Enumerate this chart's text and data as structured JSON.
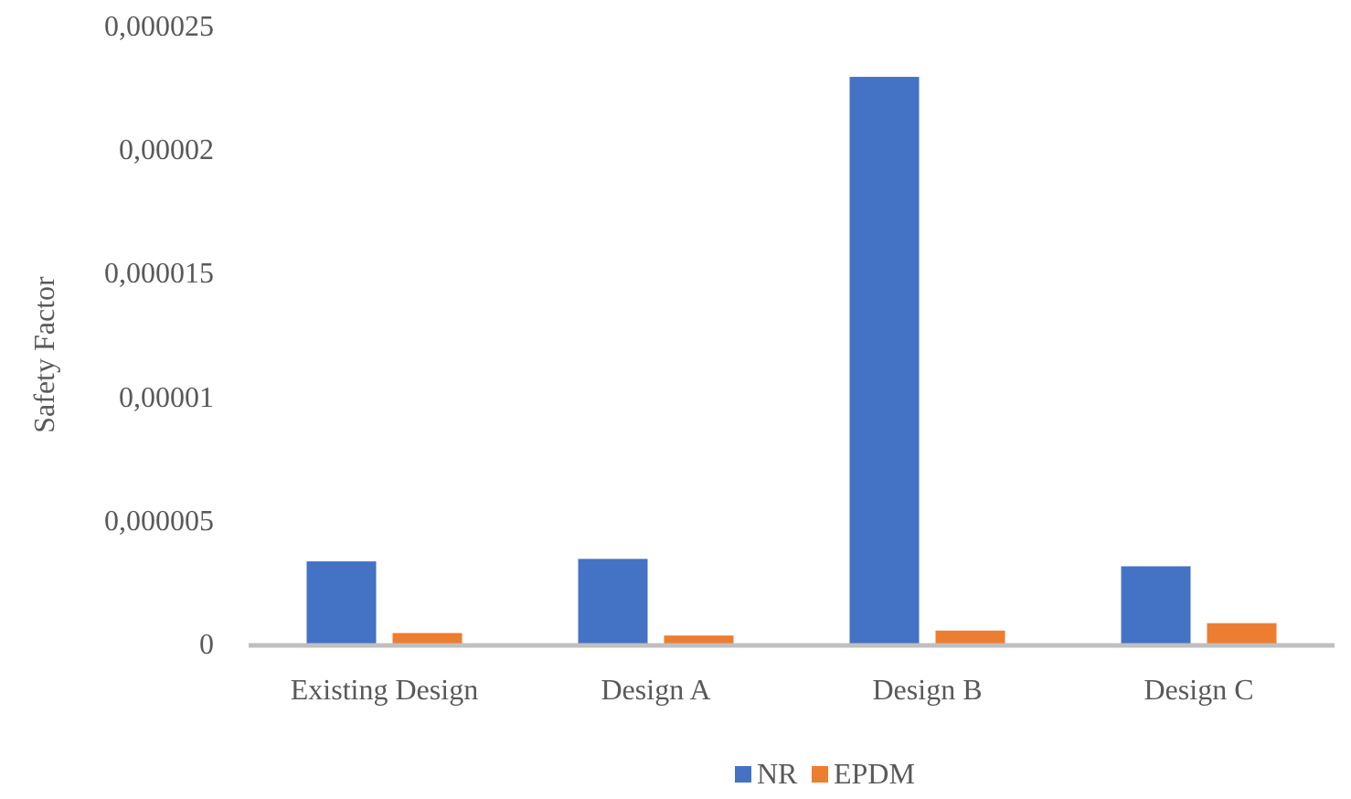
{
  "chart_data": {
    "type": "bar",
    "categories": [
      "Existing Design",
      "Design A",
      "Design B",
      "Design C"
    ],
    "series": [
      {
        "name": "NR",
        "color": "#4472c4",
        "values": [
          3.4e-06,
          3.5e-06,
          2.3e-05,
          3.2e-06
        ]
      },
      {
        "name": "EPDM",
        "color": "#ed7d31",
        "values": [
          5e-07,
          4e-07,
          6e-07,
          9e-07
        ]
      }
    ],
    "ylabel": "Safety Factor",
    "ylim": [
      0,
      2.5e-05
    ],
    "yticks": [
      0,
      {
        "value": 5e-06,
        "label": "0,000005"
      },
      {
        "value": 1e-05,
        "label": "0,00001"
      },
      {
        "value": 1.5e-05,
        "label": "0,000015"
      },
      {
        "value": 2e-05,
        "label": "0,00002"
      },
      {
        "value": 2.5e-05,
        "label": "0,000025"
      }
    ],
    "grid": false,
    "legend": "bottom"
  }
}
